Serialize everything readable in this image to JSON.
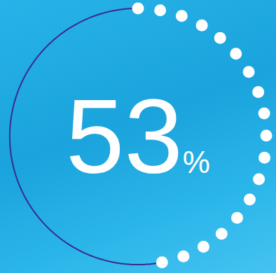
{
  "chart_data": {
    "type": "gauge",
    "values": [
      53
    ],
    "value_labels": [
      "53%"
    ],
    "ylim": [
      0,
      100
    ],
    "tick_labels": false,
    "color": "#3b2b8c"
  }
}
